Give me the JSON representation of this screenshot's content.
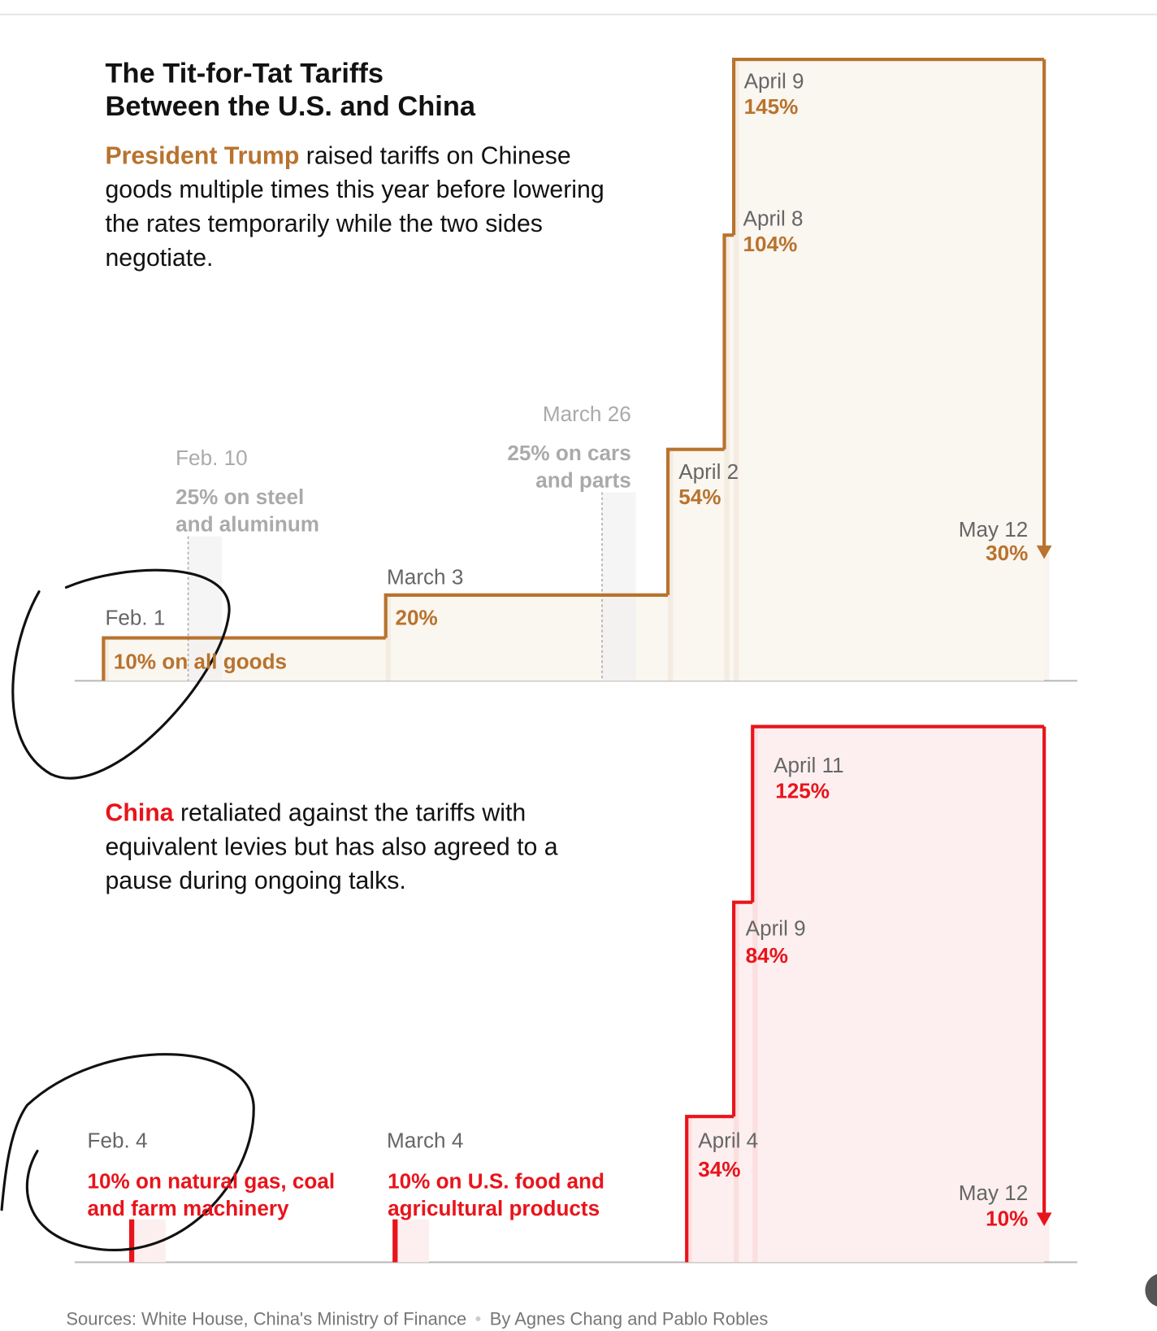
{
  "chart_data": [
    {
      "type": "step",
      "title": "The Tit-for-Tat Tariffs Between the U.S. and China",
      "subtitle_lead": "President Trump",
      "subtitle": "raised tariffs on Chinese goods multiple times this year before lowering the rates temporarily while the two sides negotiate.",
      "color": "#b8732e",
      "x": [
        "Feb. 1",
        "March 3",
        "April 2",
        "April 8",
        "April 9",
        "May 12"
      ],
      "values": [
        10,
        20,
        54,
        104,
        145,
        30
      ],
      "value_labels": [
        "10% on all goods",
        "20%",
        "54%",
        "104%",
        "145%",
        "30%"
      ],
      "notes": [
        {
          "x": "Feb. 10",
          "text": "25% on steel\nand aluminum"
        },
        {
          "x": "March 26",
          "text": "25% on cars\nand parts"
        }
      ],
      "ylim": [
        0,
        145
      ]
    },
    {
      "type": "step",
      "subtitle_lead": "China",
      "subtitle": "retaliated against the tariffs with equivalent levies but has also agreed to a pause during ongoing talks.",
      "color": "#e8141b",
      "x": [
        "April 4",
        "April 9",
        "April 11",
        "May 12"
      ],
      "values": [
        34,
        84,
        125,
        10
      ],
      "value_labels": [
        "34%",
        "84%",
        "125%",
        "10%"
      ],
      "sector_x": [
        "Feb. 4",
        "March 4"
      ],
      "sector_values": [
        10,
        10
      ],
      "sector_labels": [
        "10% on natural gas, coal\nand farm machinery",
        "10% on U.S. food and\nagricultural products"
      ],
      "ylim": [
        0,
        145
      ]
    }
  ],
  "footer": {
    "sources": "Sources: White House, China's Ministry of Finance",
    "byline": "By Agnes Chang and Pablo Robles"
  }
}
